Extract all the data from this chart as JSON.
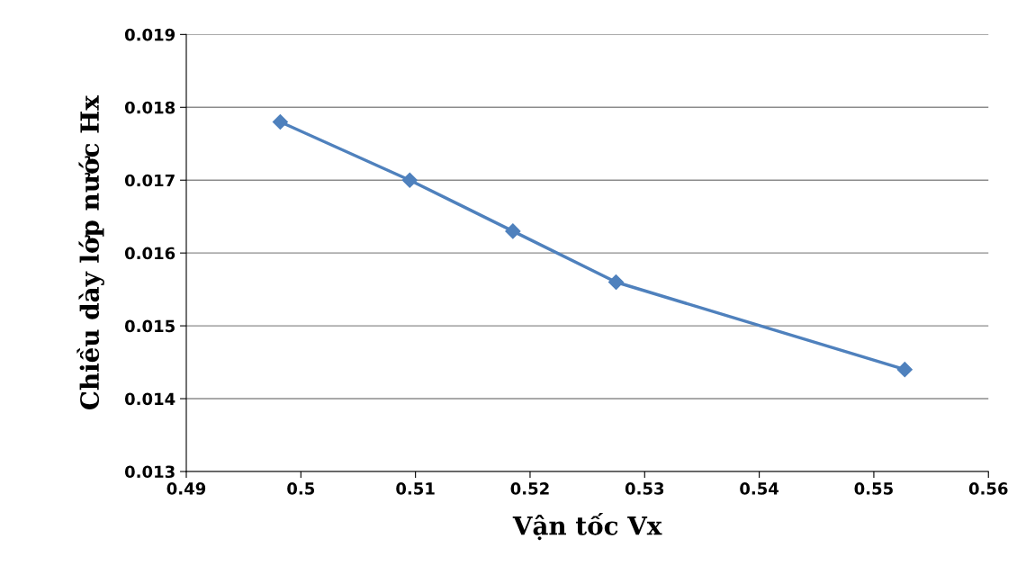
{
  "chart_data": {
    "type": "line",
    "xlabel": "Vận tốc Vx",
    "ylabel": "Chiều dày lớp nước Hx",
    "series": [
      {
        "color": "#4f81bd",
        "x": [
          0.4982,
          0.5095,
          0.5185,
          0.5275,
          0.5527
        ],
        "values": [
          0.0178,
          0.017,
          0.0163,
          0.0156,
          0.0144
        ]
      }
    ],
    "xlim": [
      0.49,
      0.56
    ],
    "xticks": [
      0.49,
      0.5,
      0.51,
      0.52,
      0.53,
      0.54,
      0.55,
      0.56
    ],
    "ylim": [
      0.013,
      0.019
    ],
    "yticks": [
      0.013,
      0.014,
      0.015,
      0.016,
      0.017,
      0.018,
      0.019
    ],
    "grid": "y",
    "marker": "diamond",
    "line_style": "solid"
  }
}
